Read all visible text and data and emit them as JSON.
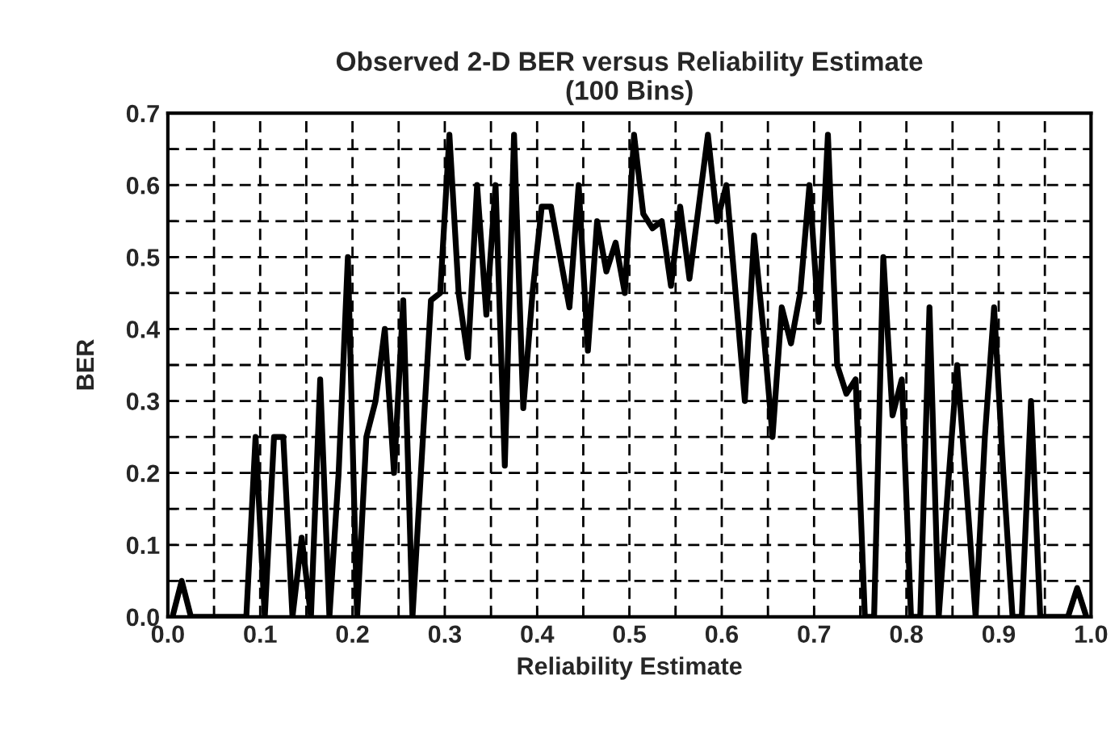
{
  "chart_data": {
    "type": "line",
    "title": "Observed 2-D BER versus Reliability Estimate\n(100 Bins)",
    "xlabel": "Reliability Estimate",
    "ylabel": "BER",
    "x": [
      0.005,
      0.015,
      0.025,
      0.035,
      0.045,
      0.055,
      0.065,
      0.075,
      0.085,
      0.095,
      0.105,
      0.115,
      0.125,
      0.135,
      0.145,
      0.155,
      0.165,
      0.175,
      0.185,
      0.195,
      0.205,
      0.215,
      0.225,
      0.235,
      0.245,
      0.255,
      0.265,
      0.275,
      0.285,
      0.295,
      0.305,
      0.315,
      0.325,
      0.335,
      0.345,
      0.355,
      0.365,
      0.375,
      0.385,
      0.395,
      0.405,
      0.415,
      0.425,
      0.435,
      0.445,
      0.455,
      0.465,
      0.475,
      0.485,
      0.495,
      0.505,
      0.515,
      0.525,
      0.535,
      0.545,
      0.555,
      0.565,
      0.575,
      0.585,
      0.595,
      0.605,
      0.615,
      0.625,
      0.635,
      0.645,
      0.655,
      0.665,
      0.675,
      0.685,
      0.695,
      0.705,
      0.715,
      0.725,
      0.735,
      0.745,
      0.755,
      0.765,
      0.775,
      0.785,
      0.795,
      0.805,
      0.815,
      0.825,
      0.835,
      0.845,
      0.855,
      0.865,
      0.875,
      0.885,
      0.895,
      0.905,
      0.915,
      0.925,
      0.935,
      0.945,
      0.955,
      0.965,
      0.975,
      0.985,
      0.995
    ],
    "series": [
      {
        "color": "#000000",
        "values": [
          0,
          0.05,
          0,
          0,
          0,
          0,
          0,
          0,
          0,
          0.25,
          0,
          0.25,
          0.25,
          0,
          0.11,
          0,
          0.33,
          0,
          0.2,
          0.5,
          0,
          0.25,
          0.3,
          0.4,
          0.2,
          0.44,
          0,
          0.22,
          0.44,
          0.45,
          0.67,
          0.45,
          0.36,
          0.6,
          0.42,
          0.6,
          0.21,
          0.67,
          0.29,
          0.45,
          0.57,
          0.57,
          0.5,
          0.43,
          0.6,
          0.37,
          0.55,
          0.48,
          0.52,
          0.45,
          0.67,
          0.56,
          0.54,
          0.55,
          0.46,
          0.57,
          0.47,
          0.57,
          0.67,
          0.55,
          0.6,
          0.45,
          0.3,
          0.53,
          0.4,
          0.25,
          0.43,
          0.38,
          0.45,
          0.6,
          0.41,
          0.67,
          0.35,
          0.31,
          0.33,
          0,
          0,
          0.5,
          0.28,
          0.33,
          0,
          0,
          0.43,
          0,
          0.18,
          0.35,
          0.18,
          0,
          0.25,
          0.43,
          0.2,
          0,
          0,
          0.3,
          0,
          0,
          0,
          0,
          0.04,
          0
        ]
      }
    ],
    "xlim": [
      0,
      1
    ],
    "ylim": [
      0,
      0.7
    ],
    "xticks": [
      {
        "value": 0,
        "label": "0.0"
      },
      {
        "value": 0.05,
        "label": null
      },
      {
        "value": 0.1,
        "label": "0.1"
      },
      {
        "value": 0.15,
        "label": null
      },
      {
        "value": 0.2,
        "label": "0.2"
      },
      {
        "value": 0.25,
        "label": null
      },
      {
        "value": 0.3,
        "label": "0.3"
      },
      {
        "value": 0.35,
        "label": null
      },
      {
        "value": 0.4,
        "label": "0.4"
      },
      {
        "value": 0.45,
        "label": null
      },
      {
        "value": 0.5,
        "label": "0.5"
      },
      {
        "value": 0.55,
        "label": null
      },
      {
        "value": 0.6,
        "label": "0.6"
      },
      {
        "value": 0.65,
        "label": null
      },
      {
        "value": 0.7,
        "label": "0.7"
      },
      {
        "value": 0.75,
        "label": null
      },
      {
        "value": 0.8,
        "label": "0.8"
      },
      {
        "value": 0.85,
        "label": null
      },
      {
        "value": 0.9,
        "label": "0.9"
      },
      {
        "value": 0.95,
        "label": null
      },
      {
        "value": 1.0,
        "label": "1.0"
      }
    ],
    "yticks": [
      {
        "value": 0,
        "label": "0.0"
      },
      {
        "value": 0.05,
        "label": null
      },
      {
        "value": 0.1,
        "label": "0.1"
      },
      {
        "value": 0.15,
        "label": null
      },
      {
        "value": 0.2,
        "label": "0.2"
      },
      {
        "value": 0.25,
        "label": null
      },
      {
        "value": 0.3,
        "label": "0.3"
      },
      {
        "value": 0.35,
        "label": null
      },
      {
        "value": 0.4,
        "label": "0.4"
      },
      {
        "value": 0.45,
        "label": null
      },
      {
        "value": 0.5,
        "label": "0.5"
      },
      {
        "value": 0.55,
        "label": null
      },
      {
        "value": 0.6,
        "label": "0.6"
      },
      {
        "value": 0.65,
        "label": null
      },
      {
        "value": 0.7,
        "label": "0.7"
      }
    ],
    "grid": true,
    "line_style": "solid",
    "marker": "none"
  }
}
